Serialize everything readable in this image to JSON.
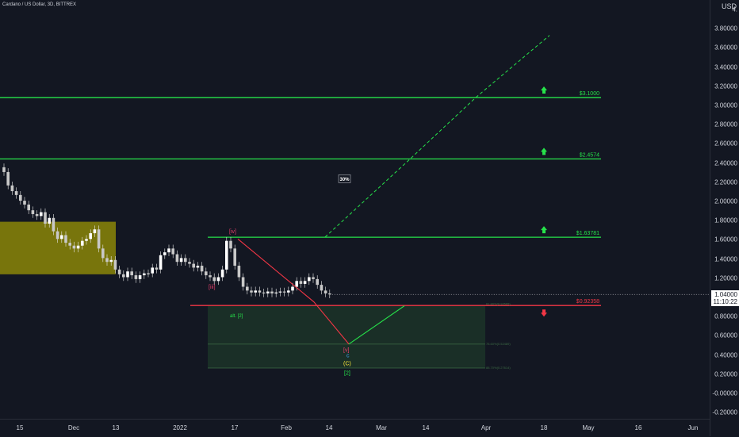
{
  "header": {
    "symbol": "Cardano / US Dollar, 3D, BITTREX",
    "currency": "USD"
  },
  "price_axis": {
    "ticks": [
      "4.",
      "3.80000",
      "3.60000",
      "3.40000",
      "3.20000",
      "3.00000",
      "2.80000",
      "2.60000",
      "2.40000",
      "2.20000",
      "2.00000",
      "1.80000",
      "1.60000",
      "1.40000",
      "1.20000",
      "1.00000",
      "0.80000",
      "0.60000",
      "0.40000",
      "0.20000",
      "-0.00000",
      "-0.20000"
    ]
  },
  "time_axis": {
    "labels": [
      "15",
      "Dec",
      "13",
      "2022",
      "17",
      "Feb",
      "14",
      "Mar",
      "14",
      "Apr",
      "18",
      "May",
      "16",
      "Jun"
    ]
  },
  "current_price": {
    "value": "1.04000",
    "countdown": "11:10:22"
  },
  "chart_data": {
    "type": "candlestick",
    "title": "Cardano / US Dollar, 3D, BITTREX",
    "currency": "USD",
    "ylim": [
      -0.22,
      4.0
    ],
    "close_series": [
      2.32,
      2.18,
      2.12,
      2.08,
      2.02,
      1.98,
      1.92,
      1.88,
      1.86,
      1.9,
      1.78,
      1.84,
      1.7,
      1.62,
      1.66,
      1.58,
      1.55,
      1.52,
      1.55,
      1.6,
      1.62,
      1.68,
      1.72,
      1.52,
      1.42,
      1.38,
      1.4,
      1.3,
      1.25,
      1.22,
      1.28,
      1.24,
      1.2,
      1.24,
      1.26,
      1.26,
      1.32,
      1.3,
      1.45,
      1.48,
      1.52,
      1.46,
      1.38,
      1.42,
      1.38,
      1.36,
      1.32,
      1.34,
      1.28,
      1.24,
      1.22,
      1.18,
      1.22,
      1.3,
      1.6,
      1.52,
      1.34,
      1.22,
      1.12,
      1.08,
      1.06,
      1.08,
      1.06,
      1.05,
      1.07,
      1.05,
      1.06,
      1.07,
      1.06,
      1.08,
      1.12,
      1.18,
      1.15,
      1.18,
      1.22,
      1.2,
      1.14,
      1.08,
      1.05,
      1.04
    ],
    "levels": [
      {
        "label": "$3.1000",
        "value": 3.1,
        "direction": "up",
        "color": "#26e34a"
      },
      {
        "label": "$2.4574",
        "value": 2.4574,
        "direction": "up",
        "color": "#26e34a"
      },
      {
        "label": "$1.63781",
        "value": 1.63781,
        "direction": "up",
        "color": "#26e34a"
      },
      {
        "label": "$0.92358",
        "value": 0.92358,
        "direction": "down",
        "color": "#f23645"
      }
    ],
    "annotations": {
      "percent": "30%",
      "wave_iii": "[iii]",
      "wave_iv": "[iv]",
      "wave_v": "[v]",
      "wave_c": "c",
      "wave_C": "(C)",
      "wave_2": "[2]",
      "alt": "alt. [2]",
      "fib1": "61.80%(0.92565)",
      "fib2": "78.60%(0.52489)",
      "fib3": "88.70%(0.27614)"
    },
    "colors": {
      "support_zone": "#7d7a0c",
      "target_zone": "#1e3a2a",
      "up": "#26e34a",
      "down": "#f23645"
    }
  }
}
